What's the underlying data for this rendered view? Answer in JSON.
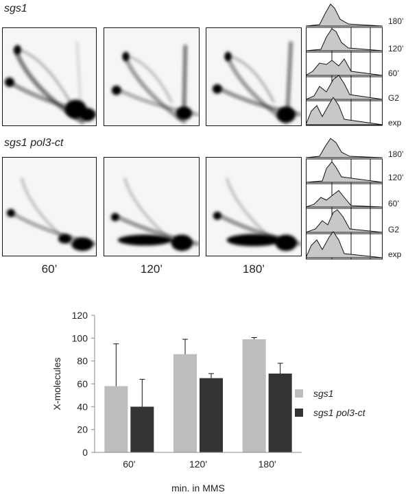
{
  "figure": {
    "panel_top_title": "sgs1",
    "panel_bottom_title": "sgs1 pol3-ct",
    "facs_labels": [
      "180’",
      "120’",
      "60’",
      "G2",
      "exp"
    ],
    "time_labels": [
      "60’",
      "120’",
      "180’"
    ]
  },
  "chart_data": {
    "type": "bar",
    "categories": [
      "60'",
      "120'",
      "180'"
    ],
    "series": [
      {
        "name": "sgs1",
        "values": [
          58,
          86,
          99
        ],
        "errors": [
          37,
          13,
          1.5
        ],
        "color": "#bdbdbd"
      },
      {
        "name": "sgs1 pol3-ct",
        "values": [
          40,
          65,
          69
        ],
        "errors": [
          24,
          4,
          9
        ],
        "color": "#333333"
      }
    ],
    "ylabel": "X-molecules",
    "xlabel": "min. in MMS",
    "ylim": [
      0,
      120
    ],
    "yticks": [
      "0",
      "20",
      "40",
      "60",
      "80",
      "100",
      "120"
    ],
    "legend": "right",
    "grid": false
  }
}
